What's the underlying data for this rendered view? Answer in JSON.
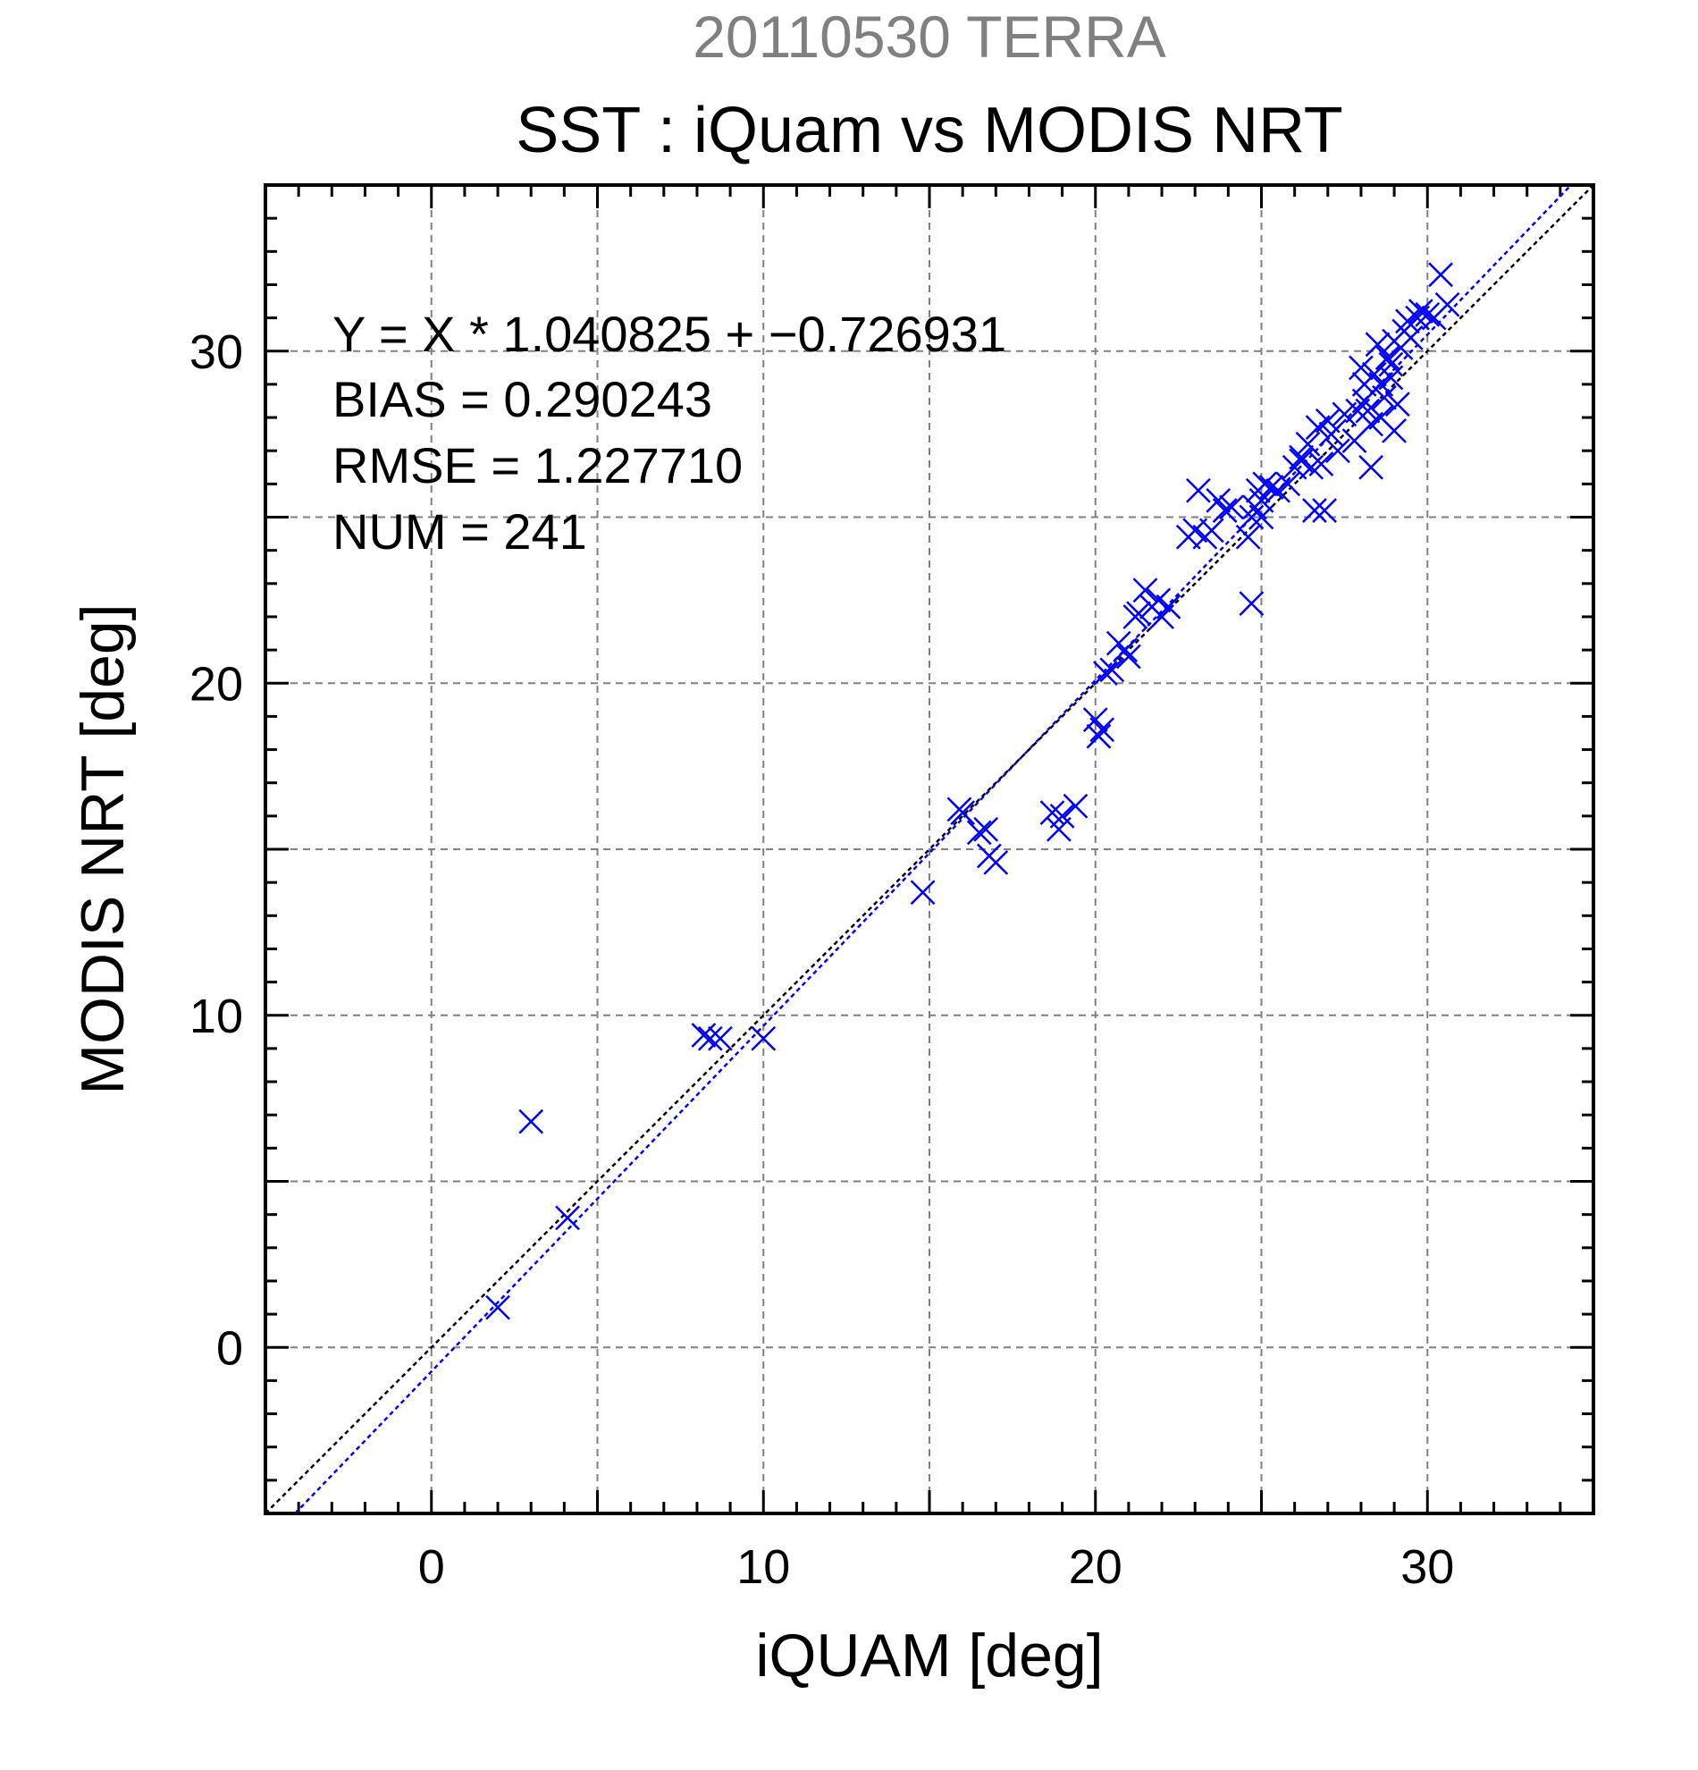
{
  "chart_data": {
    "type": "scatter",
    "title": "20110530 TERRA",
    "subtitle": "SST : iQuam vs MODIS NRT",
    "xlabel": "iQUAM [deg]",
    "ylabel": "MODIS NRT [deg]",
    "xlim": [
      -5,
      35
    ],
    "ylim": [
      -5,
      35
    ],
    "xticks": [
      0,
      10,
      20,
      30
    ],
    "yticks": [
      0,
      10,
      20,
      30
    ],
    "grid": true,
    "annotations": [
      "Y = X * 1.040825 + −0.726931",
      "BIAS = 0.290243",
      "RMSE = 1.227710",
      "NUM = 241"
    ],
    "colors": {
      "points": "#0000ff",
      "fit_line": "#0000ff",
      "one_to_one": "#000000",
      "title": "#808080",
      "grid": "#808080"
    },
    "lines": [
      {
        "name": "",
        "slope": 1.040825,
        "intercept": -0.726931,
        "color": "#0000ff"
      },
      {
        "name": "",
        "slope": 1.0,
        "intercept": 0.0,
        "color": "#000000"
      }
    ],
    "x": [
      2.0,
      3.0,
      4.1,
      8.2,
      8.4,
      8.7,
      10.0,
      14.8,
      15.9,
      16.0,
      16.5,
      16.7,
      16.8,
      17.0,
      18.7,
      18.9,
      19.0,
      19.4,
      20.0,
      20.1,
      20.2,
      20.3,
      20.5,
      20.7,
      20.9,
      21.0,
      21.2,
      21.3,
      21.5,
      21.7,
      21.9,
      22.0,
      22.2,
      22.8,
      23.0,
      23.1,
      23.3,
      23.5,
      23.7,
      23.9,
      24.1,
      24.6,
      24.7,
      24.8,
      24.9,
      25.0,
      25.1,
      25.3,
      25.5,
      25.8,
      26.0,
      26.2,
      26.4,
      26.5,
      26.7,
      26.8,
      27.0,
      27.1,
      27.3,
      27.5,
      27.8,
      28.0,
      28.1,
      28.2,
      28.3,
      28.4,
      28.5,
      28.6,
      28.7,
      28.8,
      28.9,
      29.0,
      29.1,
      29.2,
      29.3,
      29.5,
      29.7,
      29.8,
      30.0,
      30.2,
      30.4,
      30.6,
      28.3,
      28.6,
      29.0,
      28.1,
      28.9,
      29.4,
      27.9,
      26.9,
      26.6,
      26.2,
      25.0,
      24.7
    ],
    "y": [
      1.2,
      6.8,
      3.9,
      9.4,
      9.3,
      9.3,
      9.3,
      13.7,
      16.2,
      16.1,
      15.5,
      15.6,
      14.8,
      14.6,
      16.1,
      15.6,
      16.0,
      16.3,
      18.9,
      18.4,
      18.6,
      20.3,
      20.4,
      21.2,
      21.0,
      20.8,
      22.0,
      22.1,
      22.8,
      22.3,
      22.5,
      22.0,
      22.3,
      24.4,
      24.6,
      25.8,
      24.4,
      24.6,
      25.5,
      25.2,
      25.3,
      24.4,
      22.4,
      25.3,
      25.8,
      25.5,
      26.0,
      25.9,
      25.8,
      26.0,
      26.5,
      26.8,
      27.2,
      26.5,
      27.7,
      26.6,
      27.9,
      27.5,
      27.0,
      28.1,
      27.3,
      29.5,
      28.5,
      28.2,
      27.8,
      29.3,
      30.2,
      29.0,
      28.6,
      29.8,
      29.2,
      30.3,
      28.4,
      30.1,
      30.6,
      30.4,
      31.0,
      31.2,
      31.1,
      31.0,
      32.3,
      31.4,
      26.5,
      28.0,
      27.6,
      29.0,
      29.6,
      30.9,
      28.2,
      25.2,
      25.2,
      26.7,
      25.0,
      25.0
    ]
  }
}
